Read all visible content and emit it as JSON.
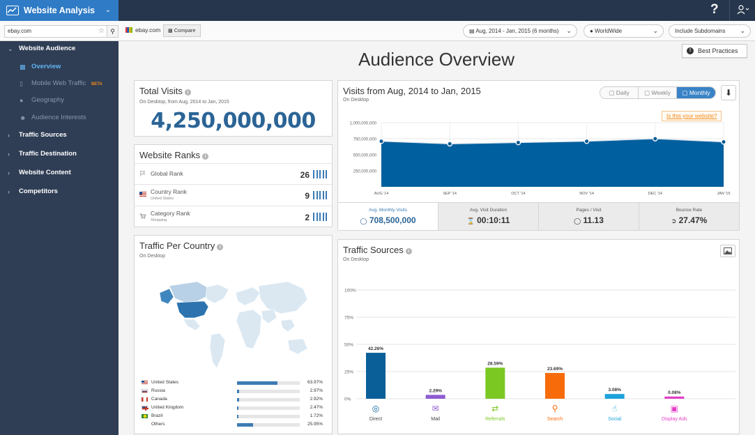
{
  "app": {
    "title": "Website Analysis"
  },
  "topbar": {
    "help": "?"
  },
  "toolbar": {
    "search_value": "ebay.com",
    "site": "ebay.com",
    "compare_label": "Compare",
    "date_range": "Aug, 2014 - Jan, 2015 (6 months)",
    "region": "WorldWide",
    "subdomains": "Include Subdomains"
  },
  "sidebar": {
    "sections": [
      {
        "label": "Website Audience",
        "expanded": true
      },
      {
        "label": "Traffic Sources"
      },
      {
        "label": "Traffic Destination"
      },
      {
        "label": "Website Content"
      },
      {
        "label": "Competitors"
      }
    ],
    "audience_items": [
      {
        "label": "Overview",
        "active": true
      },
      {
        "label": "Mobile Web Traffic",
        "badge": "BETA"
      },
      {
        "label": "Geography"
      },
      {
        "label": "Audience Interests"
      }
    ]
  },
  "page": {
    "title": "Audience Overview",
    "best_practices": "Best Practices"
  },
  "total_visits": {
    "title": "Total Visits",
    "subtitle": "On Desktop, from Aug, 2014 to Jan, 2015",
    "value": "4,250,000,000"
  },
  "website_ranks": {
    "title": "Website Ranks",
    "rows": [
      {
        "label": "Global Rank",
        "sub": "",
        "value": "26"
      },
      {
        "label": "Country Rank",
        "sub": "United States",
        "value": "9"
      },
      {
        "label": "Category Rank",
        "sub": "Shopping",
        "value": "2"
      }
    ]
  },
  "visits_chart": {
    "subtitle": "On Desktop",
    "tabs": [
      "Daily",
      "Weekly",
      "Monthly"
    ],
    "active_tab": "Monthly",
    "website_link": "Is this your website?",
    "metrics": [
      {
        "label": "Avg. Monthly Visits",
        "value": "708,500,000"
      },
      {
        "label": "Avg. Visit Duration",
        "value": "00:10:11"
      },
      {
        "label": "Pages / Visit",
        "value": "11.13"
      },
      {
        "label": "Bounce Rate",
        "value": "27.47%"
      }
    ]
  },
  "traffic_country": {
    "title": "Traffic Per Country",
    "subtitle": "On Desktop",
    "rows": [
      {
        "name": "United States",
        "pct": "63.97%",
        "value": 63.97
      },
      {
        "name": "Russia",
        "pct": "2.97%",
        "value": 2.97
      },
      {
        "name": "Canada",
        "pct": "2.92%",
        "value": 2.92
      },
      {
        "name": "United Kingdom",
        "pct": "2.47%",
        "value": 2.47
      },
      {
        "name": "Brazil",
        "pct": "1.72%",
        "value": 1.72
      },
      {
        "name": "Others",
        "pct": "25.95%",
        "value": 25.95
      }
    ]
  },
  "traffic_sources": {
    "title": "Traffic Sources",
    "subtitle": "On Desktop"
  },
  "chart_data": [
    {
      "type": "area",
      "title": "Visits from Aug, 2014 to Jan, 2015",
      "categories": [
        "AUG '14",
        "SEP '14",
        "OCT '14",
        "NOV '14",
        "DEC '14",
        "JAN '15"
      ],
      "values": [
        710000000,
        670000000,
        690000000,
        710000000,
        750000000,
        700000000
      ],
      "ylim": [
        0,
        1000000000
      ],
      "yticks": [
        "250,000,000",
        "500,000,000",
        "750,000,000",
        "1,000,000,000"
      ],
      "color": "#005f9e"
    },
    {
      "type": "bar",
      "title": "Traffic Sources",
      "categories": [
        "Direct",
        "Mail",
        "Referrals",
        "Search",
        "Social",
        "Display Ads"
      ],
      "values": [
        42.26,
        2.29,
        28.59,
        23.69,
        3.08,
        0.08
      ],
      "labels": [
        "42.26%",
        "2.29%",
        "28.59%",
        "23.69%",
        "3.08%",
        "0.08%"
      ],
      "colors": [
        "#0b5f99",
        "#8d5bd1",
        "#7bc823",
        "#f76b0b",
        "#1ba2dc",
        "#e43fc6"
      ],
      "ylim": [
        0,
        100
      ],
      "yticks": [
        "0%",
        "25%",
        "50%",
        "75%",
        "100%"
      ]
    }
  ]
}
